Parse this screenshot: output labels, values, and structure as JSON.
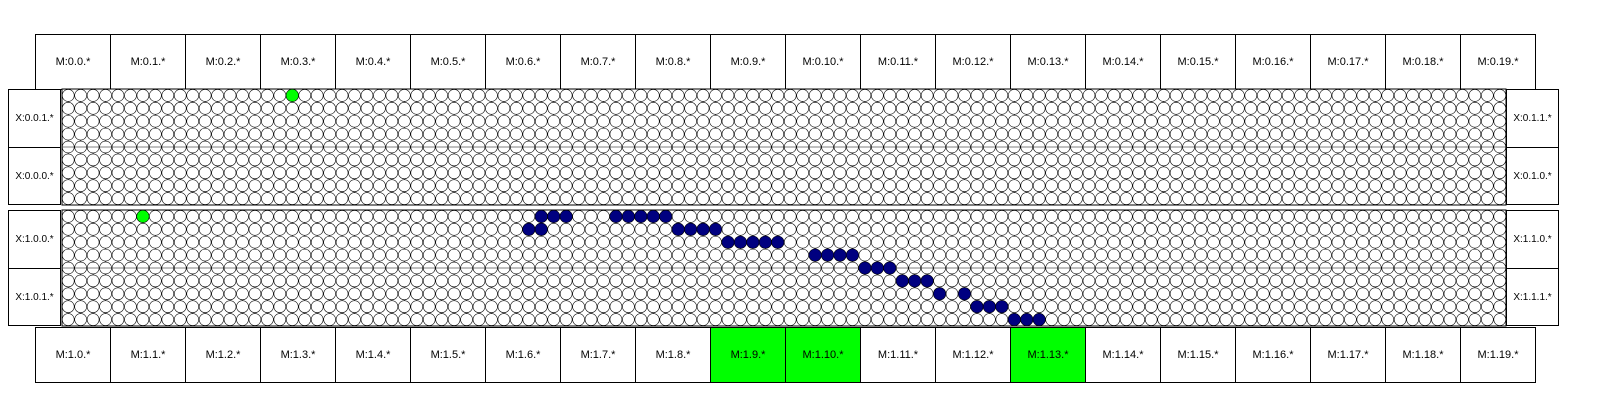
{
  "top_modules": [
    "M:0.0.*",
    "M:0.1.*",
    "M:0.2.*",
    "M:0.3.*",
    "M:0.4.*",
    "M:0.5.*",
    "M:0.6.*",
    "M:0.7.*",
    "M:0.8.*",
    "M:0.9.*",
    "M:0.10.*",
    "M:0.11.*",
    "M:0.12.*",
    "M:0.13.*",
    "M:0.14.*",
    "M:0.15.*",
    "M:0.16.*",
    "M:0.17.*",
    "M:0.18.*",
    "M:0.19.*"
  ],
  "bottom_modules": [
    "M:1.0.*",
    "M:1.1.*",
    "M:1.2.*",
    "M:1.3.*",
    "M:1.4.*",
    "M:1.5.*",
    "M:1.6.*",
    "M:1.7.*",
    "M:1.8.*",
    "M:1.9.*",
    "M:1.10.*",
    "M:1.11.*",
    "M:1.12.*",
    "M:1.13.*",
    "M:1.14.*",
    "M:1.15.*",
    "M:1.16.*",
    "M:1.17.*",
    "M:1.18.*",
    "M:1.19.*"
  ],
  "highlighted_bottom_modules": [
    9,
    10,
    13
  ],
  "left_labels": [
    "X:0.0.1.*",
    "X:0.0.0.*",
    "X:1.0.0.*",
    "X:1.0.1.*"
  ],
  "right_labels": [
    "X:0.1.1.*",
    "X:0.1.0.*",
    "X:1.1.0.*",
    "X:1.1.1.*"
  ],
  "colors": {
    "highlight": "#00ff00",
    "track": "#000080",
    "node": "#ffffff",
    "border": "#000000"
  },
  "grid": {
    "columns": 116,
    "rows_per_band": 9,
    "bands": 2
  },
  "active_nodes": [
    {
      "band": 0,
      "row": 0,
      "col": 18,
      "color": "green"
    },
    {
      "band": 1,
      "row": 0,
      "col": 6,
      "color": "green"
    },
    {
      "band": 1,
      "row": 0,
      "col": 38,
      "color": "blue"
    },
    {
      "band": 1,
      "row": 0,
      "col": 39,
      "color": "blue"
    },
    {
      "band": 1,
      "row": 0,
      "col": 40,
      "color": "blue"
    },
    {
      "band": 1,
      "row": 0,
      "col": 44,
      "color": "blue"
    },
    {
      "band": 1,
      "row": 0,
      "col": 45,
      "color": "blue"
    },
    {
      "band": 1,
      "row": 0,
      "col": 46,
      "color": "blue"
    },
    {
      "band": 1,
      "row": 0,
      "col": 47,
      "color": "blue"
    },
    {
      "band": 1,
      "row": 0,
      "col": 48,
      "color": "blue"
    },
    {
      "band": 1,
      "row": 1,
      "col": 37,
      "color": "blue"
    },
    {
      "band": 1,
      "row": 1,
      "col": 38,
      "color": "blue"
    },
    {
      "band": 1,
      "row": 1,
      "col": 49,
      "color": "blue"
    },
    {
      "band": 1,
      "row": 1,
      "col": 50,
      "color": "blue"
    },
    {
      "band": 1,
      "row": 1,
      "col": 51,
      "color": "blue"
    },
    {
      "band": 1,
      "row": 1,
      "col": 52,
      "color": "blue"
    },
    {
      "band": 1,
      "row": 2,
      "col": 53,
      "color": "blue"
    },
    {
      "band": 1,
      "row": 2,
      "col": 54,
      "color": "blue"
    },
    {
      "band": 1,
      "row": 2,
      "col": 55,
      "color": "blue"
    },
    {
      "band": 1,
      "row": 2,
      "col": 56,
      "color": "blue"
    },
    {
      "band": 1,
      "row": 2,
      "col": 57,
      "color": "blue"
    },
    {
      "band": 1,
      "row": 3,
      "col": 60,
      "color": "blue"
    },
    {
      "band": 1,
      "row": 3,
      "col": 61,
      "color": "blue"
    },
    {
      "band": 1,
      "row": 3,
      "col": 62,
      "color": "blue"
    },
    {
      "band": 1,
      "row": 3,
      "col": 63,
      "color": "blue"
    },
    {
      "band": 1,
      "row": 4,
      "col": 64,
      "color": "blue"
    },
    {
      "band": 1,
      "row": 4,
      "col": 65,
      "color": "blue"
    },
    {
      "band": 1,
      "row": 4,
      "col": 66,
      "color": "blue"
    },
    {
      "band": 1,
      "row": 5,
      "col": 67,
      "color": "blue"
    },
    {
      "band": 1,
      "row": 5,
      "col": 68,
      "color": "blue"
    },
    {
      "band": 1,
      "row": 5,
      "col": 69,
      "color": "blue"
    },
    {
      "band": 1,
      "row": 6,
      "col": 70,
      "color": "blue"
    },
    {
      "band": 1,
      "row": 6,
      "col": 72,
      "color": "blue"
    },
    {
      "band": 1,
      "row": 7,
      "col": 73,
      "color": "blue"
    },
    {
      "band": 1,
      "row": 7,
      "col": 74,
      "color": "blue"
    },
    {
      "band": 1,
      "row": 7,
      "col": 75,
      "color": "blue"
    },
    {
      "band": 1,
      "row": 8,
      "col": 76,
      "color": "blue"
    },
    {
      "band": 1,
      "row": 8,
      "col": 77,
      "color": "blue"
    },
    {
      "band": 1,
      "row": 8,
      "col": 78,
      "color": "blue"
    }
  ]
}
